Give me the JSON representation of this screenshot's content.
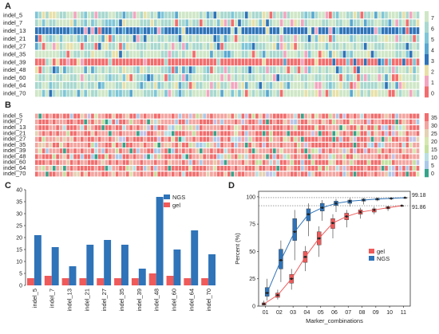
{
  "panels": {
    "A": {
      "label": "A",
      "rows": [
        "indel_5",
        "indel_7",
        "indel_13",
        "indel_21",
        "indel_27",
        "indel_35",
        "indel_39",
        "indel_48",
        "indel_60",
        "indel_64",
        "indel_70"
      ],
      "scale_ticks": [
        "7",
        "6",
        "5",
        "4",
        "3",
        "2",
        "1",
        "0"
      ],
      "palette": [
        "#cfe7c7",
        "#a8d8cf",
        "#7fc6d8",
        "#5aa8d0",
        "#2f73b8",
        "#e9e0a8",
        "#f3a5c0",
        "#f26d6d"
      ]
    },
    "B": {
      "label": "B",
      "rows": [
        "indel_5",
        "indel_7",
        "indel_13",
        "indel_21",
        "indel_27",
        "indel_35",
        "indel_39",
        "indel_48",
        "indel_60",
        "indel_64",
        "indel_70"
      ],
      "scale_ticks": [
        "35",
        "30",
        "25",
        "20",
        "15",
        "10",
        "5",
        "0"
      ],
      "palette": [
        "#f26d6d",
        "#f3a5a0",
        "#e8c9a8",
        "#e4d2b4",
        "#d7e7b0",
        "#c4e0a0",
        "#b9dfe3",
        "#c3c2e6",
        "#a9c9e8",
        "#36a38a"
      ]
    },
    "C": {
      "label": "C",
      "categories": [
        "indel_5",
        "indel_7",
        "indel_13",
        "indel_21",
        "indel_27",
        "indel_35",
        "indel_39",
        "indel_48",
        "indel_60",
        "indel_64",
        "indel_70"
      ],
      "legend": [
        "NGS",
        "gel"
      ],
      "y_ticks": [
        "0",
        "5",
        "10",
        "15",
        "20",
        "25",
        "30",
        "35",
        "40"
      ]
    },
    "D": {
      "label": "D",
      "xlabel": "Marker_combinations",
      "ylabel": "Percent (%)",
      "legend": [
        "gel",
        "NGS"
      ],
      "x_ticks": [
        "01",
        "02",
        "03",
        "04",
        "05",
        "06",
        "07",
        "08",
        "09",
        "10",
        "11"
      ],
      "y_ticks": [
        "0",
        "25",
        "50",
        "75",
        "100"
      ],
      "ref_labels": [
        "99.18",
        "91.86"
      ]
    }
  },
  "colors": {
    "ngs": "#2f73b8",
    "gel": "#ef5a5a"
  },
  "chart_data": [
    {
      "type": "bar",
      "categories": [
        "indel_5",
        "indel_7",
        "indel_13",
        "indel_21",
        "indel_27",
        "indel_35",
        "indel_39",
        "indel_48",
        "indel_60",
        "indel_64",
        "indel_70"
      ],
      "series": [
        {
          "name": "NGS",
          "values": [
            21,
            16,
            8,
            17,
            19,
            17,
            7,
            37,
            15,
            23,
            13
          ]
        },
        {
          "name": "gel",
          "values": [
            3,
            4,
            3,
            3,
            3,
            3,
            3,
            5,
            4,
            3,
            3
          ]
        }
      ],
      "ylim": [
        0,
        40
      ],
      "legend": "top-right"
    },
    {
      "type": "box",
      "categories": [
        "01",
        "02",
        "03",
        "04",
        "05",
        "06",
        "07",
        "08",
        "09",
        "10",
        "11"
      ],
      "xlabel": "Marker_combinations",
      "ylabel": "Percent (%)",
      "ylim": [
        0,
        100
      ],
      "reference_lines": [
        99.18,
        91.86
      ],
      "series": [
        {
          "name": "gel",
          "boxes": [
            [
              1,
              1,
              2,
              3,
              5
            ],
            [
              6,
              8,
              10,
              12,
              15
            ],
            [
              15,
              21,
              25,
              29,
              34
            ],
            [
              32,
              40,
              45,
              50,
              55
            ],
            [
              45,
              56,
              62,
              68,
              73
            ],
            [
              62,
              71,
              76,
              80,
              84
            ],
            [
              72,
              79,
              82,
              85,
              88
            ],
            [
              80,
              84,
              86,
              88,
              90
            ],
            [
              84,
              86,
              88,
              89,
              91
            ],
            [
              87,
              89,
              90,
              91,
              92
            ],
            [
              91.86,
              91.86,
              91.86,
              91.86,
              91.86
            ]
          ]
        },
        {
          "name": "NGS",
          "boxes": [
            [
              5,
              9,
              12,
              17,
              25
            ],
            [
              22,
              34,
              42,
              52,
              60
            ],
            [
              42,
              60,
              68,
              80,
              88
            ],
            [
              64,
              78,
              84,
              89,
              94
            ],
            [
              78,
              87,
              90,
              94,
              97
            ],
            [
              86,
              92,
              94,
              96,
              98
            ],
            [
              91,
              94,
              96,
              97,
              99
            ],
            [
              93,
              96,
              97,
              98,
              99
            ],
            [
              96,
              97,
              98,
              98.5,
              99
            ],
            [
              97,
              98,
              98.5,
              99,
              99.18
            ],
            [
              99.18,
              99.18,
              99.18,
              99.18,
              99.18
            ]
          ]
        }
      ],
      "legend": "middle-right"
    }
  ]
}
